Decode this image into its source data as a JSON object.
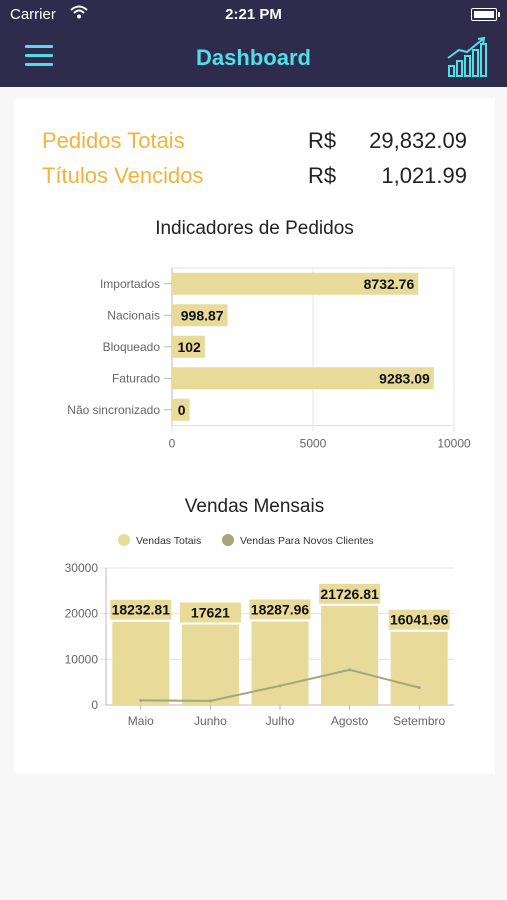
{
  "status_bar": {
    "carrier": "Carrier",
    "time": "2:21 PM"
  },
  "navbar": {
    "title": "Dashboard",
    "menu_icon": "hamburger-icon",
    "chart_icon": "bar-chart-trend-icon"
  },
  "colors": {
    "navbar": "#2e2b4d",
    "accent": "#4fe0e6",
    "summary_label": "#f0b43a",
    "bar": "#e8db9a",
    "line": "#a5a47a"
  },
  "summary": [
    {
      "label": "Pedidos Totais",
      "currency": "R$",
      "amount": "29,832.09"
    },
    {
      "label": "Títulos Vencidos",
      "currency": "R$",
      "amount": "1,021.99"
    }
  ],
  "chart_data": [
    {
      "type": "bar",
      "orientation": "horizontal",
      "title": "Indicadores de Pedidos",
      "categories": [
        "Importados",
        "Nacionais",
        "Bloqueado",
        "Faturado",
        "Não sincronizado"
      ],
      "values": [
        8732.76,
        998.87,
        102,
        9283.09,
        0
      ],
      "value_labels": [
        "8732.76",
        "998.87",
        "102",
        "9283.09",
        "0"
      ],
      "xlim": [
        0,
        10000
      ],
      "xticks": [
        "0",
        "5000",
        "10000"
      ],
      "grid": true
    },
    {
      "type": "bar",
      "title": "Vendas Mensais",
      "categories": [
        "Maio",
        "Junho",
        "Julho",
        "Agosto",
        "Setembro"
      ],
      "series": [
        {
          "name": "Vendas Totais",
          "type": "bar",
          "values": [
            18232.81,
            17621,
            18287.96,
            21726.81,
            16041.96
          ],
          "value_labels": [
            "18232.81",
            "17621",
            "18287.96",
            "21726.81",
            "16041.96"
          ]
        },
        {
          "name": "Vendas Para Novos Clientes",
          "type": "line",
          "values": [
            1000,
            900,
            4200,
            7700,
            3800
          ]
        }
      ],
      "ylim": [
        0,
        30000
      ],
      "yticks": [
        "0",
        "10000",
        "20000",
        "30000"
      ],
      "legend": "top",
      "grid": true
    }
  ]
}
